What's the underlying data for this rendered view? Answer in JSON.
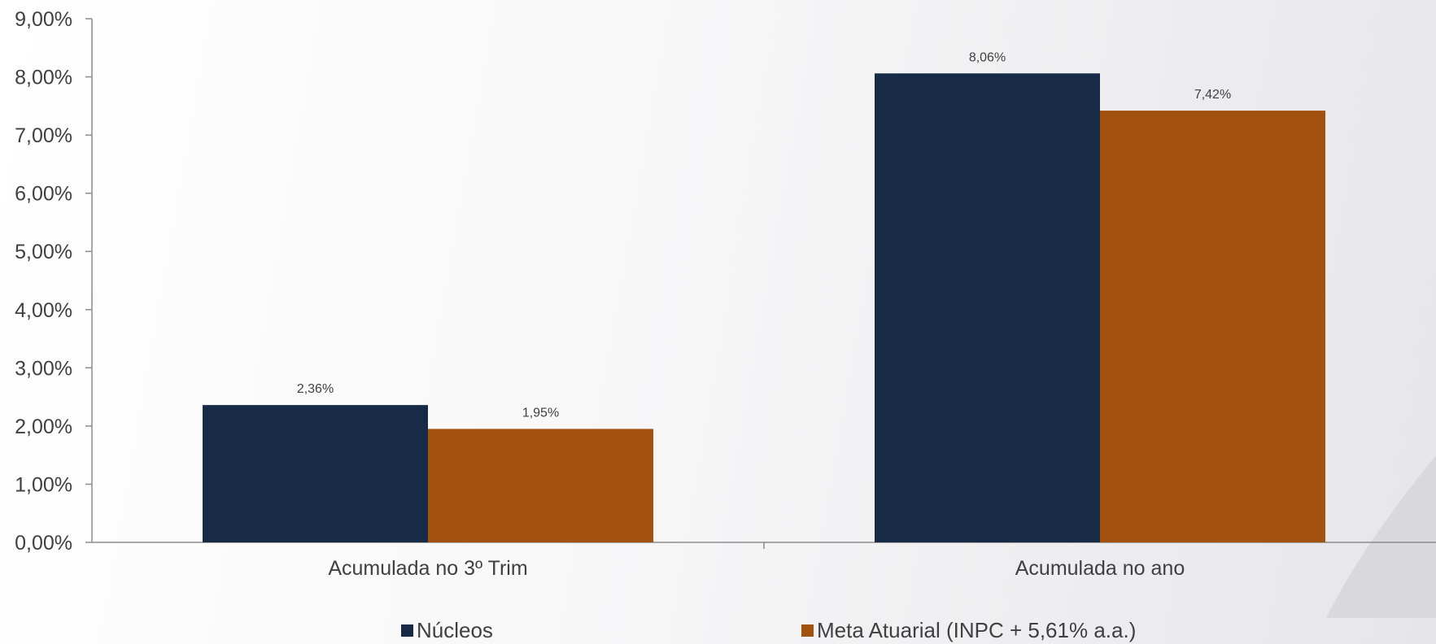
{
  "chart_data": {
    "type": "bar",
    "categories": [
      "Acumulada no 3º Trim",
      "Acumulada no ano"
    ],
    "series": [
      {
        "name": "Núcleos",
        "values": [
          2.36,
          8.06
        ],
        "labels": [
          "2,36%",
          "8,06%"
        ],
        "color": "#172b47"
      },
      {
        "name": "Meta Atuarial (INPC + 5,61% a.a.)",
        "values": [
          1.95,
          7.42
        ],
        "labels": [
          "1,95%",
          "7,42%"
        ],
        "color": "#a3510f"
      }
    ],
    "ylim": [
      0,
      9
    ],
    "y_ticks": [
      "0,00%",
      "1,00%",
      "2,00%",
      "3,00%",
      "4,00%",
      "5,00%",
      "6,00%",
      "7,00%",
      "8,00%",
      "9,00%"
    ],
    "xlabel": "",
    "ylabel": "",
    "grid": false,
    "legend_position": "bottom"
  }
}
